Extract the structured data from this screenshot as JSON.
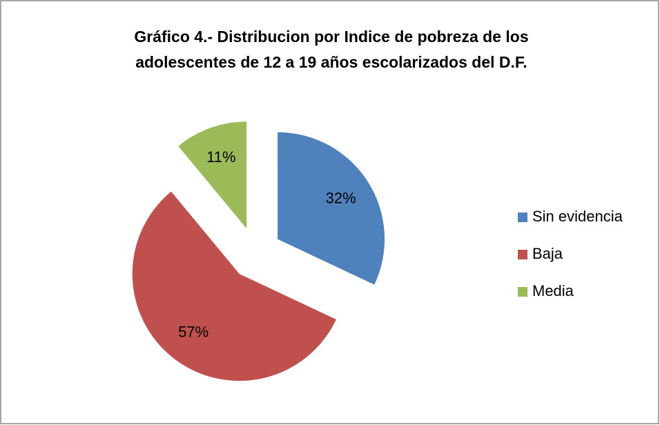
{
  "chart_data": {
    "type": "pie",
    "title": [
      "Gráfico 4.- Distribucion por Indice de pobreza de los",
      "adolescentes de 12 a 19 años escolarizados del D.F."
    ],
    "categories": [
      "Sin evidencia",
      "Baja",
      "Media"
    ],
    "values": [
      32,
      57,
      11
    ],
    "value_labels": [
      "32%",
      "57%",
      "11%"
    ],
    "colors": [
      "#4f81bd",
      "#c0504d",
      "#9bbb59"
    ],
    "exploded": true,
    "legend": "right"
  }
}
